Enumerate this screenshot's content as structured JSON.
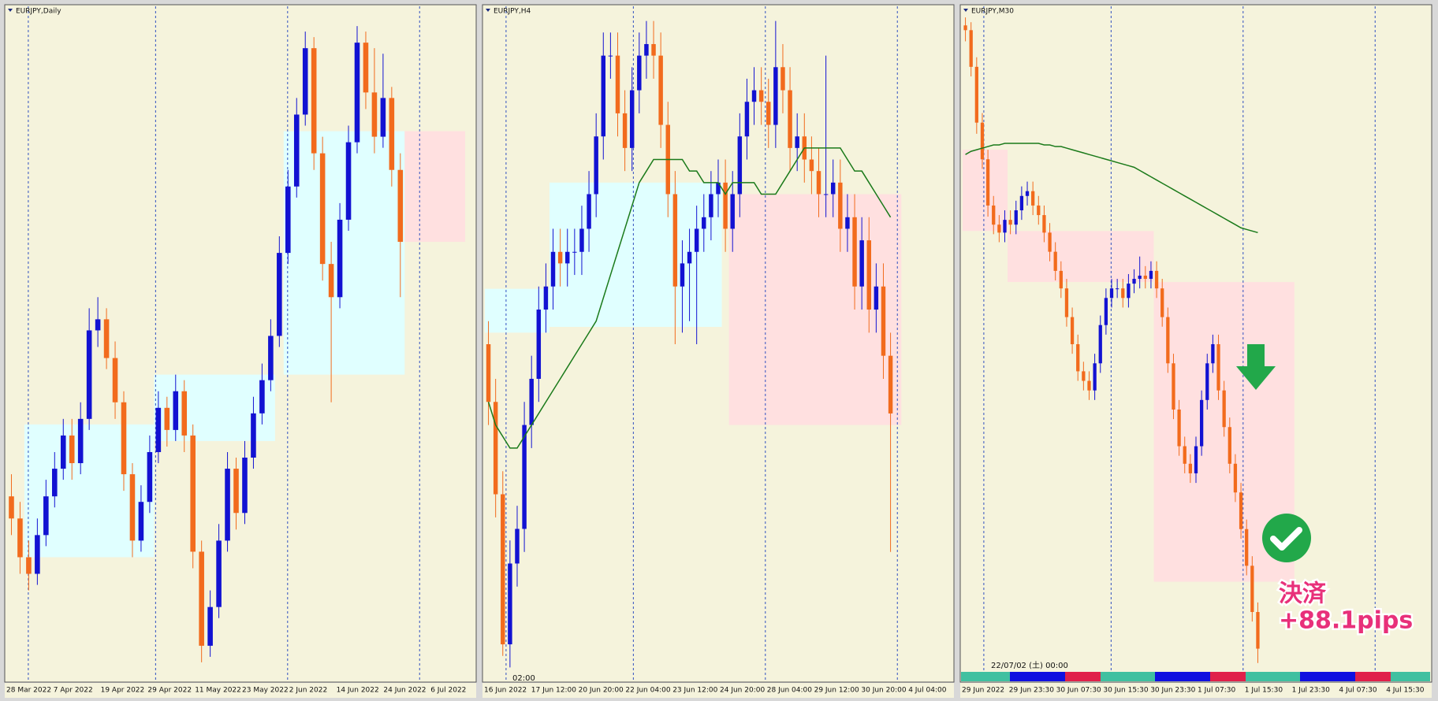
{
  "chart_data": [
    {
      "type": "candlestick",
      "title": "EURJPY,Daily",
      "ylim": [
        132.3,
        144.4
      ],
      "background": "#f5f3dc",
      "up_color": "#1212d2",
      "down_color": "#f26b1d",
      "x_labels": [
        "28 Mar 2022",
        "7 Apr 2022",
        "19 Apr 2022",
        "29 Apr 2022",
        "11 May 2022",
        "23 May 2022",
        "2 Jun 2022",
        "14 Jun 2022",
        "24 Jun 2022",
        "6 Jul 2022"
      ],
      "zones": [
        {
          "from": 2,
          "to": 17,
          "top": 136.9,
          "bottom": 134.5,
          "color": "#e0ffff"
        },
        {
          "from": 17,
          "to": 31,
          "top": 137.8,
          "bottom": 136.6,
          "color": "#e0ffff"
        },
        {
          "from": 32,
          "to": 46,
          "top": 142.2,
          "bottom": 137.8,
          "color": "#e0ffff"
        },
        {
          "from": 46,
          "to": 53,
          "top": 142.2,
          "bottom": 140.2,
          "color": "#ffe0e0"
        }
      ],
      "candles": [
        [
          135.6,
          136.0,
          134.9,
          135.2
        ],
        [
          135.2,
          135.5,
          134.2,
          134.5
        ],
        [
          134.5,
          134.8,
          133.9,
          134.2
        ],
        [
          134.2,
          135.2,
          134.0,
          134.9
        ],
        [
          134.9,
          135.9,
          134.7,
          135.6
        ],
        [
          135.6,
          136.4,
          135.4,
          136.1
        ],
        [
          136.1,
          137.0,
          135.9,
          136.7
        ],
        [
          136.7,
          137.0,
          135.9,
          136.2
        ],
        [
          136.2,
          137.3,
          136.0,
          137.0
        ],
        [
          137.0,
          139.0,
          136.8,
          138.6
        ],
        [
          138.6,
          139.2,
          138.3,
          138.8
        ],
        [
          138.8,
          139.0,
          137.9,
          138.1
        ],
        [
          138.1,
          138.4,
          137.0,
          137.3
        ],
        [
          137.3,
          137.5,
          135.7,
          136.0
        ],
        [
          136.0,
          136.2,
          134.5,
          134.8
        ],
        [
          134.8,
          135.8,
          134.6,
          135.5
        ],
        [
          135.5,
          136.7,
          135.3,
          136.4
        ],
        [
          136.4,
          137.5,
          136.2,
          137.2
        ],
        [
          137.2,
          137.4,
          136.5,
          136.8
        ],
        [
          136.8,
          137.8,
          136.6,
          137.5
        ],
        [
          137.5,
          137.7,
          136.4,
          136.7
        ],
        [
          136.7,
          136.9,
          134.3,
          134.6
        ],
        [
          134.6,
          134.8,
          132.6,
          132.9
        ],
        [
          132.9,
          133.9,
          132.7,
          133.6
        ],
        [
          133.6,
          135.1,
          133.4,
          134.8
        ],
        [
          134.8,
          136.4,
          134.6,
          136.1
        ],
        [
          136.1,
          136.3,
          135.0,
          135.3
        ],
        [
          135.3,
          136.6,
          135.1,
          136.3
        ],
        [
          136.3,
          137.4,
          136.1,
          137.1
        ],
        [
          137.1,
          138.0,
          136.9,
          137.7
        ],
        [
          137.7,
          138.8,
          137.5,
          138.5
        ],
        [
          138.5,
          140.3,
          138.3,
          140.0
        ],
        [
          140.0,
          141.5,
          139.8,
          141.2
        ],
        [
          141.2,
          142.8,
          141.0,
          142.5
        ],
        [
          142.5,
          144.0,
          142.3,
          143.7
        ],
        [
          143.7,
          143.9,
          141.5,
          141.8
        ],
        [
          141.8,
          142.1,
          139.5,
          139.8
        ],
        [
          139.8,
          140.2,
          137.3,
          139.2
        ],
        [
          139.2,
          140.9,
          139.0,
          140.6
        ],
        [
          140.6,
          142.3,
          140.4,
          142.0
        ],
        [
          142.0,
          144.1,
          141.8,
          143.8
        ],
        [
          143.8,
          144.0,
          142.6,
          142.9
        ],
        [
          142.9,
          143.7,
          141.8,
          142.1
        ],
        [
          142.1,
          143.6,
          141.9,
          142.8
        ],
        [
          142.8,
          143.0,
          141.2,
          141.5
        ],
        [
          141.5,
          141.8,
          139.2,
          140.2
        ]
      ]
    },
    {
      "type": "candlestick",
      "title": "EURJPY,H4",
      "note": "02:00",
      "ylim": [
        138.6,
        144.4
      ],
      "background": "#f5f3dc",
      "up_color": "#1212d2",
      "down_color": "#f26b1d",
      "x_labels": [
        "16 Jun 2022",
        "17 Jun 12:00",
        "20 Jun 20:00",
        "22 Jun 04:00",
        "23 Jun 12:00",
        "24 Jun 20:00",
        "28 Jun 04:00",
        "29 Jun 12:00",
        "30 Jun 20:00",
        "4 Jul 04:00"
      ],
      "zones": [
        {
          "from": 0,
          "to": 9,
          "top": 141.98,
          "bottom": 141.6,
          "color": "#e0ffff"
        },
        {
          "from": 9,
          "to": 33,
          "top": 142.9,
          "bottom": 141.65,
          "color": "#e0ffff"
        },
        {
          "from": 34,
          "to": 58,
          "top": 142.8,
          "bottom": 140.8,
          "color": "#ffe0e0"
        }
      ],
      "ma": {
        "color": "#1a7a1a",
        "values": [
          141.0,
          140.8,
          140.7,
          140.6,
          140.6,
          140.7,
          140.8,
          140.9,
          141.0,
          141.1,
          141.2,
          141.3,
          141.4,
          141.5,
          141.6,
          141.7,
          141.9,
          142.1,
          142.3,
          142.5,
          142.7,
          142.9,
          143.0,
          143.1,
          143.1,
          143.1,
          143.1,
          143.1,
          143.0,
          143.0,
          142.9,
          142.9,
          142.9,
          142.8,
          142.9,
          142.9,
          142.9,
          142.9,
          142.8,
          142.8,
          142.8,
          142.9,
          143.0,
          143.1,
          143.2,
          143.2,
          143.2,
          143.2,
          143.2,
          143.2,
          143.1,
          143.0,
          143.0,
          142.9,
          142.8,
          142.7,
          142.6
        ]
      },
      "candles": [
        [
          141.5,
          141.7,
          140.8,
          141.0
        ],
        [
          141.0,
          141.2,
          140.0,
          140.2
        ],
        [
          140.2,
          140.4,
          138.8,
          138.9
        ],
        [
          138.9,
          139.8,
          138.7,
          139.6
        ],
        [
          139.6,
          140.1,
          139.4,
          139.9
        ],
        [
          139.9,
          141.0,
          139.7,
          140.8
        ],
        [
          140.8,
          141.4,
          140.6,
          141.2
        ],
        [
          141.2,
          142.0,
          141.0,
          141.8
        ],
        [
          141.8,
          142.2,
          141.6,
          142.0
        ],
        [
          142.0,
          142.5,
          141.8,
          142.3
        ],
        [
          142.3,
          142.5,
          142.0,
          142.2
        ],
        [
          142.2,
          142.5,
          142.0,
          142.3
        ],
        [
          142.3,
          142.5,
          142.1,
          142.3
        ],
        [
          142.3,
          142.7,
          142.1,
          142.5
        ],
        [
          142.5,
          143.0,
          142.3,
          142.8
        ],
        [
          142.8,
          143.5,
          142.6,
          143.3
        ],
        [
          143.3,
          144.2,
          143.1,
          144.0
        ],
        [
          144.0,
          144.2,
          143.8,
          144.0
        ],
        [
          144.0,
          144.2,
          143.3,
          143.5
        ],
        [
          143.5,
          143.7,
          143.0,
          143.2
        ],
        [
          143.2,
          143.9,
          143.0,
          143.7
        ],
        [
          143.7,
          144.2,
          143.5,
          144.0
        ],
        [
          144.0,
          144.3,
          143.8,
          144.1
        ],
        [
          144.1,
          144.3,
          143.8,
          144.0
        ],
        [
          144.0,
          144.2,
          143.2,
          143.4
        ],
        [
          143.4,
          143.6,
          142.6,
          142.8
        ],
        [
          142.8,
          143.0,
          141.5,
          142.0
        ],
        [
          142.0,
          142.4,
          141.6,
          142.2
        ],
        [
          142.2,
          142.5,
          141.7,
          142.3
        ],
        [
          142.3,
          142.7,
          141.5,
          142.5
        ],
        [
          142.5,
          142.8,
          142.3,
          142.6
        ],
        [
          142.6,
          143.0,
          142.4,
          142.8
        ],
        [
          142.8,
          143.1,
          142.6,
          142.9
        ],
        [
          142.9,
          143.1,
          142.3,
          142.5
        ],
        [
          142.5,
          143.0,
          142.3,
          142.8
        ],
        [
          142.8,
          143.5,
          142.6,
          143.3
        ],
        [
          143.3,
          143.8,
          143.1,
          143.6
        ],
        [
          143.6,
          143.9,
          143.4,
          143.7
        ],
        [
          143.7,
          143.9,
          143.4,
          143.6
        ],
        [
          143.6,
          143.8,
          143.2,
          143.4
        ],
        [
          143.4,
          144.3,
          143.2,
          143.9
        ],
        [
          143.9,
          144.1,
          143.5,
          143.7
        ],
        [
          143.7,
          143.9,
          143.0,
          143.2
        ],
        [
          143.2,
          143.5,
          143.0,
          143.3
        ],
        [
          143.3,
          143.5,
          142.9,
          143.1
        ],
        [
          143.1,
          143.3,
          142.8,
          143.0
        ],
        [
          143.0,
          143.2,
          142.6,
          142.8
        ],
        [
          142.8,
          144.0,
          142.6,
          142.8
        ],
        [
          142.8,
          143.1,
          142.6,
          142.9
        ],
        [
          142.9,
          143.1,
          142.3,
          142.5
        ],
        [
          142.5,
          142.8,
          142.3,
          142.6
        ],
        [
          142.6,
          142.8,
          141.8,
          142.0
        ],
        [
          142.0,
          142.6,
          141.8,
          142.4
        ],
        [
          142.4,
          142.6,
          141.6,
          141.8
        ],
        [
          141.8,
          142.2,
          141.6,
          142.0
        ],
        [
          142.0,
          142.2,
          141.2,
          141.4
        ],
        [
          141.4,
          141.6,
          139.7,
          140.9
        ]
      ]
    },
    {
      "type": "candlestick",
      "title": "EURJPY,M30",
      "note": "22/07/02 (土) 00:00",
      "annotation": [
        "決済",
        "+88.1pips"
      ],
      "ylim": [
        138.4,
        142.6
      ],
      "background": "#f5f3dc",
      "up_color": "#1212d2",
      "down_color": "#f26b1d",
      "x_labels": [
        "29 Jun 2022",
        "29 Jun 23:30",
        "30 Jun 07:30",
        "30 Jun 15:30",
        "30 Jun 23:30",
        "1 Jul 07:30",
        "1 Jul 15:30",
        "1 Jul 23:30",
        "4 Jul 07:30",
        "4 Jul 15:30"
      ],
      "zones": [
        {
          "from": 0,
          "to": 8,
          "top": 141.72,
          "bottom": 141.21,
          "color": "#ffe0e0"
        },
        {
          "from": 8,
          "to": 34,
          "top": 141.21,
          "bottom": 140.89,
          "color": "#ffe0e0"
        },
        {
          "from": 34,
          "to": 59,
          "top": 140.89,
          "bottom": 139.01,
          "color": "#ffe0e0"
        }
      ],
      "ma": {
        "color": "#1a7a1a",
        "values": [
          141.69,
          141.71,
          141.72,
          141.73,
          141.74,
          141.75,
          141.75,
          141.76,
          141.76,
          141.76,
          141.76,
          141.76,
          141.76,
          141.76,
          141.75,
          141.75,
          141.74,
          141.74,
          141.73,
          141.72,
          141.71,
          141.7,
          141.69,
          141.68,
          141.67,
          141.66,
          141.65,
          141.64,
          141.63,
          141.62,
          141.61,
          141.59,
          141.57,
          141.55,
          141.53,
          141.51,
          141.49,
          141.47,
          141.45,
          141.43,
          141.41,
          141.39,
          141.37,
          141.35,
          141.33,
          141.31,
          141.29,
          141.27,
          141.25,
          141.23,
          141.22,
          141.21,
          141.2
        ]
      },
      "candles": [
        [
          142.5,
          142.55,
          142.4,
          142.47
        ],
        [
          142.47,
          142.52,
          142.18,
          142.24
        ],
        [
          142.24,
          142.3,
          141.82,
          141.89
        ],
        [
          141.89,
          141.95,
          141.6,
          141.66
        ],
        [
          141.66,
          141.72,
          141.3,
          141.37
        ],
        [
          141.37,
          141.43,
          141.19,
          141.25
        ],
        [
          141.25,
          141.31,
          141.14,
          141.2
        ],
        [
          141.2,
          141.34,
          141.14,
          141.28
        ],
        [
          141.28,
          141.34,
          141.19,
          141.25
        ],
        [
          141.25,
          141.4,
          141.19,
          141.34
        ],
        [
          141.34,
          141.49,
          141.28,
          141.43
        ],
        [
          141.43,
          141.52,
          141.37,
          141.46
        ],
        [
          141.46,
          141.52,
          141.31,
          141.37
        ],
        [
          141.37,
          141.43,
          141.25,
          141.31
        ],
        [
          141.31,
          141.37,
          141.14,
          141.2
        ],
        [
          141.2,
          141.26,
          141.02,
          141.08
        ],
        [
          141.08,
          141.14,
          140.9,
          140.96
        ],
        [
          140.96,
          141.02,
          140.79,
          140.85
        ],
        [
          140.85,
          140.91,
          140.61,
          140.67
        ],
        [
          140.67,
          140.73,
          140.44,
          140.5
        ],
        [
          140.5,
          140.56,
          140.27,
          140.33
        ],
        [
          140.33,
          140.39,
          140.21,
          140.27
        ],
        [
          140.27,
          140.33,
          140.15,
          140.21
        ],
        [
          140.21,
          140.44,
          140.15,
          140.38
        ],
        [
          140.38,
          140.68,
          140.32,
          140.62
        ],
        [
          140.62,
          140.85,
          140.56,
          140.79
        ],
        [
          140.79,
          140.91,
          140.73,
          140.85
        ],
        [
          140.85,
          140.91,
          140.79,
          140.85
        ],
        [
          140.85,
          140.91,
          140.73,
          140.79
        ],
        [
          140.79,
          140.94,
          140.73,
          140.88
        ],
        [
          140.88,
          140.97,
          140.82,
          140.91
        ],
        [
          140.91,
          141.05,
          140.85,
          140.93
        ],
        [
          140.93,
          140.99,
          140.85,
          140.91
        ],
        [
          140.91,
          141.02,
          140.85,
          140.96
        ],
        [
          140.96,
          141.02,
          140.79,
          140.85
        ],
        [
          140.85,
          140.91,
          140.61,
          140.67
        ],
        [
          140.67,
          140.73,
          140.32,
          140.38
        ],
        [
          140.38,
          140.44,
          140.03,
          140.09
        ],
        [
          140.09,
          140.15,
          139.8,
          139.86
        ],
        [
          139.86,
          139.92,
          139.69,
          139.75
        ],
        [
          139.75,
          139.81,
          139.63,
          139.69
        ],
        [
          139.69,
          139.92,
          139.63,
          139.86
        ],
        [
          139.86,
          140.21,
          139.8,
          140.15
        ],
        [
          140.15,
          140.44,
          140.09,
          140.38
        ],
        [
          140.38,
          140.56,
          140.32,
          140.5
        ],
        [
          140.5,
          140.56,
          140.15,
          140.21
        ],
        [
          140.21,
          140.27,
          139.92,
          139.98
        ],
        [
          139.98,
          140.04,
          139.69,
          139.75
        ],
        [
          139.75,
          139.81,
          139.51,
          139.57
        ],
        [
          139.57,
          139.63,
          139.28,
          139.34
        ],
        [
          139.34,
          139.4,
          139.05,
          139.11
        ],
        [
          139.11,
          139.17,
          138.76,
          138.82
        ],
        [
          138.82,
          138.88,
          138.5,
          138.59
        ]
      ]
    }
  ]
}
